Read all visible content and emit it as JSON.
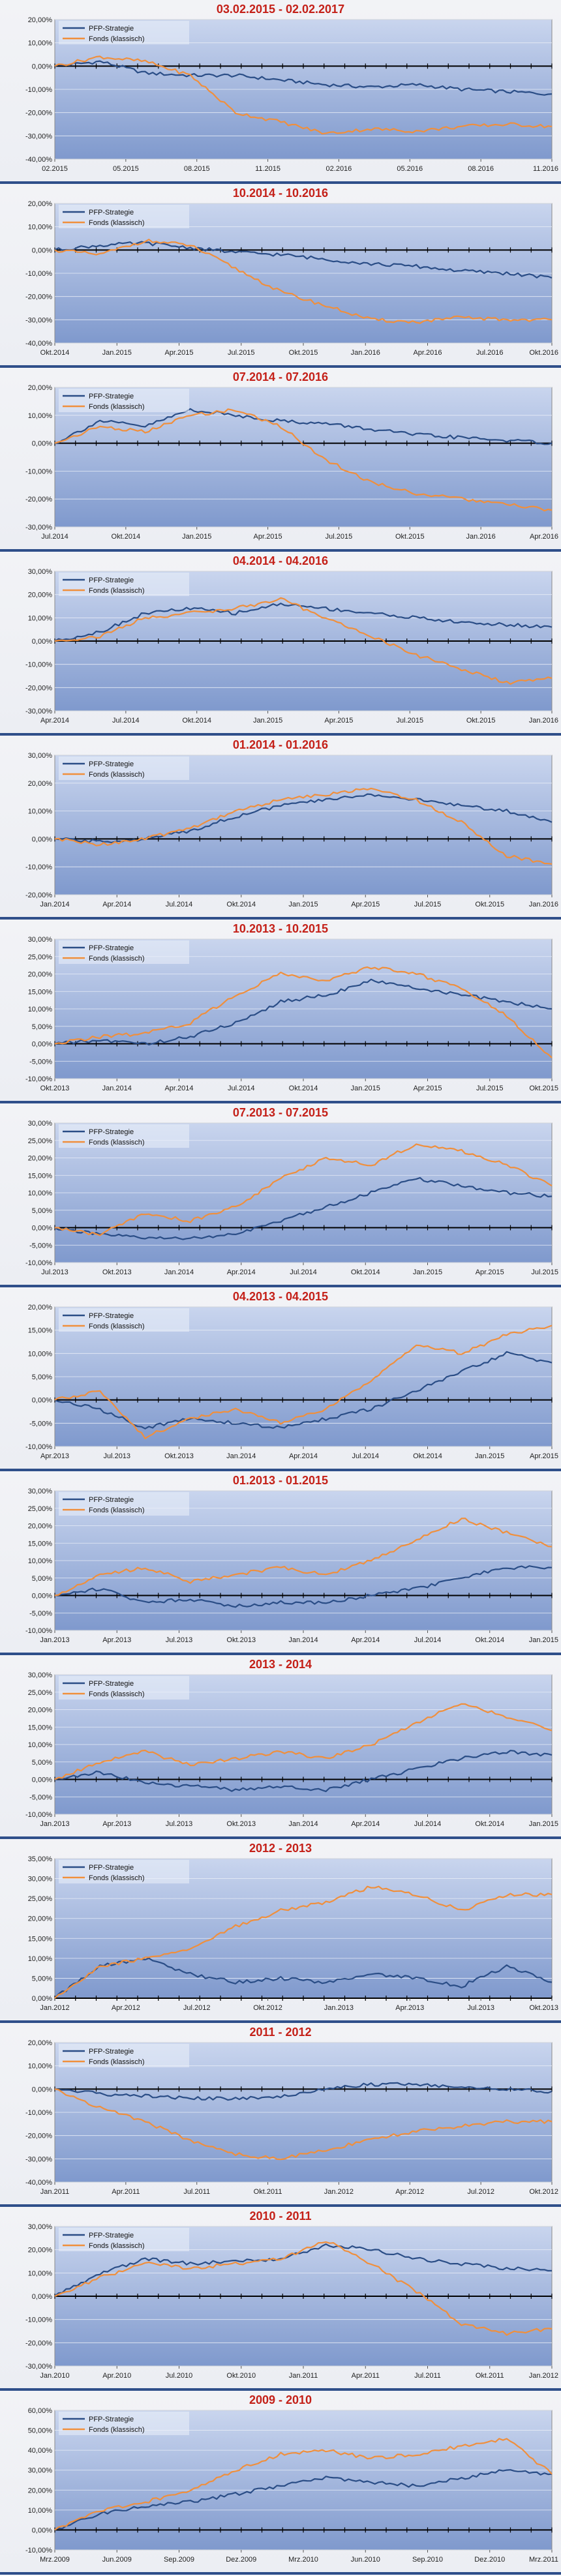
{
  "legend_labels": [
    "PFP-Strategie",
    "Fonds (klassisch)"
  ],
  "colors": {
    "pfp": "#2a4d86",
    "fonds": "#f08f3c",
    "title": "#c42018"
  },
  "chart_data": [
    {
      "type": "line",
      "title": "03.02.2015 - 02.02.2017",
      "x_ticks": [
        "02.2015",
        "05.2015",
        "08.2015",
        "11.2015",
        "02.2016",
        "05.2016",
        "08.2016",
        "11.2016"
      ],
      "y_ticks": [
        "20,00%",
        "10,00%",
        "0,00%",
        "-10,00%",
        "-20,00%",
        "-30,00%",
        "-40,00%"
      ],
      "ylim": [
        -40,
        20
      ],
      "series": [
        {
          "name": "PFP-Strategie",
          "values": [
            0,
            2,
            -3,
            -4,
            -4,
            -6,
            -8,
            -9,
            -8,
            -10,
            -11,
            -12
          ]
        },
        {
          "name": "Fonds (klassisch)",
          "values": [
            0,
            4,
            2,
            -4,
            -20,
            -24,
            -29,
            -27,
            -28,
            -26,
            -25,
            -26
          ]
        }
      ]
    },
    {
      "type": "line",
      "title": "10.2014 - 10.2016",
      "x_ticks": [
        "Okt.2014",
        "Jan.2015",
        "Apr.2015",
        "Jul.2015",
        "Okt.2015",
        "Jan.2016",
        "Apr.2016",
        "Jul.2016",
        "Okt.2016"
      ],
      "y_ticks": [
        "20,00%",
        "10,00%",
        "0,00%",
        "-10,00%",
        "-20,00%",
        "-30,00%",
        "-40,00%"
      ],
      "ylim": [
        -40,
        20
      ],
      "series": [
        {
          "name": "PFP-Strategie",
          "values": [
            0,
            2,
            3,
            1,
            -1,
            -2,
            -4,
            -6,
            -7,
            -9,
            -10,
            -12
          ]
        },
        {
          "name": "Fonds (klassisch)",
          "values": [
            0,
            -2,
            4,
            2,
            -8,
            -18,
            -24,
            -30,
            -31,
            -29,
            -30,
            -30
          ]
        }
      ]
    },
    {
      "type": "line",
      "title": "07.2014 - 07.2016",
      "x_ticks": [
        "Jul.2014",
        "Okt.2014",
        "Jan.2015",
        "Apr.2015",
        "Jul.2015",
        "Okt.2015",
        "Jan.2016",
        "Apr.2016"
      ],
      "y_ticks": [
        "20,00%",
        "10,00%",
        "0,00%",
        "-10,00%",
        "-20,00%",
        "-30,00%"
      ],
      "ylim": [
        -30,
        20
      ],
      "series": [
        {
          "name": "PFP-Strategie",
          "values": [
            0,
            8,
            6,
            12,
            10,
            8,
            7,
            5,
            3,
            2,
            1,
            0
          ]
        },
        {
          "name": "Fonds (klassisch)",
          "values": [
            0,
            6,
            4,
            10,
            12,
            6,
            -6,
            -14,
            -18,
            -20,
            -22,
            -24
          ]
        }
      ]
    },
    {
      "type": "line",
      "title": "04.2014 - 04.2016",
      "x_ticks": [
        "Apr.2014",
        "Jul.2014",
        "Okt.2014",
        "Jan.2015",
        "Apr.2015",
        "Jul.2015",
        "Okt.2015",
        "Jan.2016"
      ],
      "y_ticks": [
        "30,00%",
        "20,00%",
        "10,00%",
        "0,00%",
        "-10,00%",
        "-20,00%",
        "-30,00%"
      ],
      "ylim": [
        -30,
        30
      ],
      "series": [
        {
          "name": "PFP-Strategie",
          "values": [
            0,
            4,
            12,
            14,
            12,
            16,
            14,
            12,
            10,
            8,
            7,
            6
          ]
        },
        {
          "name": "Fonds (klassisch)",
          "values": [
            0,
            2,
            10,
            12,
            14,
            18,
            10,
            2,
            -6,
            -12,
            -18,
            -16
          ]
        }
      ]
    },
    {
      "type": "line",
      "title": "01.2014 - 01.2016",
      "x_ticks": [
        "Jan.2014",
        "Apr.2014",
        "Jul.2014",
        "Okt.2014",
        "Jan.2015",
        "Apr.2015",
        "Jul.2015",
        "Okt.2015",
        "Jan.2016"
      ],
      "y_ticks": [
        "30,00%",
        "20,00%",
        "10,00%",
        "0,00%",
        "-10,00%",
        "-20,00%"
      ],
      "ylim": [
        -20,
        30
      ],
      "series": [
        {
          "name": "PFP-Strategie",
          "values": [
            0,
            -1,
            0,
            3,
            8,
            12,
            14,
            16,
            14,
            12,
            10,
            6
          ]
        },
        {
          "name": "Fonds (klassisch)",
          "values": [
            0,
            -2,
            0,
            4,
            10,
            14,
            16,
            18,
            14,
            6,
            -6,
            -9
          ]
        }
      ]
    },
    {
      "type": "line",
      "title": "10.2013 - 10.2015",
      "x_ticks": [
        "Okt.2013",
        "Jan.2014",
        "Apr.2014",
        "Jul.2014",
        "Okt.2014",
        "Jan.2015",
        "Apr.2015",
        "Jul.2015",
        "Okt.2015"
      ],
      "y_ticks": [
        "30,00%",
        "25,00%",
        "20,00%",
        "15,00%",
        "10,00%",
        "5,00%",
        "0,00%",
        "-5,00%",
        "-10,00%"
      ],
      "ylim": [
        -10,
        30
      ],
      "series": [
        {
          "name": "PFP-Strategie",
          "values": [
            0,
            1,
            0,
            2,
            6,
            12,
            14,
            18,
            16,
            14,
            12,
            10
          ]
        },
        {
          "name": "Fonds (klassisch)",
          "values": [
            0,
            2,
            3,
            6,
            14,
            20,
            18,
            22,
            20,
            16,
            8,
            -4
          ]
        }
      ]
    },
    {
      "type": "line",
      "title": "07.2013 - 07.2015",
      "x_ticks": [
        "Jul.2013",
        "Okt.2013",
        "Jan.2014",
        "Apr.2014",
        "Jul.2014",
        "Okt.2014",
        "Jan.2015",
        "Apr.2015",
        "Jul.2015"
      ],
      "y_ticks": [
        "30,00%",
        "25,00%",
        "20,00%",
        "15,00%",
        "10,00%",
        "5,00%",
        "0,00%",
        "-5,00%",
        "-10,00%"
      ],
      "ylim": [
        -10,
        30
      ],
      "series": [
        {
          "name": "PFP-Strategie",
          "values": [
            0,
            -2,
            -3,
            -3,
            -2,
            2,
            6,
            10,
            14,
            12,
            10,
            9
          ]
        },
        {
          "name": "Fonds (klassisch)",
          "values": [
            0,
            -2,
            4,
            2,
            6,
            14,
            20,
            18,
            24,
            22,
            18,
            12
          ]
        }
      ]
    },
    {
      "type": "line",
      "title": "04.2013 - 04.2015",
      "x_ticks": [
        "Apr.2013",
        "Jul.2013",
        "Okt.2013",
        "Jan.2014",
        "Apr.2014",
        "Jul.2014",
        "Okt.2014",
        "Jan.2015",
        "Apr.2015"
      ],
      "y_ticks": [
        "20,00%",
        "15,00%",
        "10,00%",
        "5,00%",
        "0,00%",
        "-5,00%",
        "-10,00%"
      ],
      "ylim": [
        -10,
        20
      ],
      "series": [
        {
          "name": "PFP-Strategie",
          "values": [
            0,
            -2,
            -6,
            -4,
            -5,
            -6,
            -4,
            -2,
            2,
            6,
            10,
            8
          ]
        },
        {
          "name": "Fonds (klassisch)",
          "values": [
            0,
            2,
            -8,
            -4,
            -2,
            -5,
            -2,
            4,
            12,
            10,
            14,
            16
          ]
        }
      ]
    },
    {
      "type": "line",
      "title": "01.2013 - 01.2015",
      "x_ticks": [
        "Jan.2013",
        "Apr.2013",
        "Jul.2013",
        "Okt.2013",
        "Jan.2014",
        "Apr.2014",
        "Jul.2014",
        "Okt.2014",
        "Jan.2015"
      ],
      "y_ticks": [
        "30,00%",
        "25,00%",
        "20,00%",
        "15,00%",
        "10,00%",
        "5,00%",
        "0,00%",
        "-5,00%",
        "-10,00%"
      ],
      "ylim": [
        -10,
        30
      ],
      "series": [
        {
          "name": "PFP-Strategie",
          "values": [
            0,
            2,
            -2,
            -1,
            -3,
            -2,
            -2,
            0,
            2,
            5,
            8,
            8
          ]
        },
        {
          "name": "Fonds (klassisch)",
          "values": [
            0,
            6,
            8,
            4,
            6,
            8,
            6,
            10,
            16,
            22,
            18,
            14
          ]
        }
      ]
    },
    {
      "type": "line",
      "title": "2013 - 2014",
      "x_ticks": [
        "Jan.2013",
        "Apr.2013",
        "Jul.2013",
        "Okt.2013",
        "Jan.2014",
        "Apr.2014",
        "Jul.2014",
        "Okt.2014",
        "Jan.2015"
      ],
      "y_ticks": [
        "30,00%",
        "25,00%",
        "20,00%",
        "15,00%",
        "10,00%",
        "5,00%",
        "0,00%",
        "-5,00%",
        "-10,00%"
      ],
      "ylim": [
        -10,
        30
      ],
      "series": [
        {
          "name": "PFP-Strategie",
          "values": [
            0,
            2,
            -1,
            -2,
            -3,
            -2,
            -3,
            0,
            3,
            6,
            8,
            7
          ]
        },
        {
          "name": "Fonds (klassisch)",
          "values": [
            0,
            5,
            8,
            4,
            6,
            8,
            6,
            10,
            16,
            22,
            18,
            14
          ]
        }
      ]
    },
    {
      "type": "line",
      "title": "2012 - 2013",
      "x_ticks": [
        "Jan.2012",
        "Apr.2012",
        "Jul.2012",
        "Okt.2012",
        "Jan.2013",
        "Apr.2013",
        "Jul.2013",
        "Okt.2013"
      ],
      "y_ticks": [
        "35,00%",
        "30,00%",
        "25,00%",
        "20,00%",
        "15,00%",
        "10,00%",
        "5,00%",
        "0,00%"
      ],
      "ylim": [
        0,
        35
      ],
      "series": [
        {
          "name": "PFP-Strategie",
          "values": [
            0,
            8,
            10,
            6,
            4,
            5,
            4,
            6,
            5,
            3,
            8,
            4
          ]
        },
        {
          "name": "Fonds (klassisch)",
          "values": [
            0,
            8,
            10,
            12,
            18,
            22,
            24,
            28,
            26,
            22,
            26,
            26
          ]
        }
      ]
    },
    {
      "type": "line",
      "title": "2011 - 2012",
      "x_ticks": [
        "Jan.2011",
        "Apr.2011",
        "Jul.2011",
        "Okt.2011",
        "Jan.2012",
        "Apr.2012",
        "Jul.2012",
        "Okt.2012"
      ],
      "y_ticks": [
        "20,00%",
        "10,00%",
        "0,00%",
        "-10,00%",
        "-20,00%",
        "-30,00%",
        "-40,00%"
      ],
      "ylim": [
        -40,
        20
      ],
      "series": [
        {
          "name": "PFP-Strategie",
          "values": [
            0,
            -2,
            -3,
            -4,
            -4,
            -3,
            0,
            2,
            2,
            1,
            0,
            -1
          ]
        },
        {
          "name": "Fonds (klassisch)",
          "values": [
            0,
            -8,
            -14,
            -22,
            -28,
            -30,
            -26,
            -22,
            -18,
            -16,
            -14,
            -14
          ]
        }
      ]
    },
    {
      "type": "line",
      "title": "2010 - 2011",
      "x_ticks": [
        "Jan.2010",
        "Apr.2010",
        "Jul.2010",
        "Okt.2010",
        "Jan.2011",
        "Apr.2011",
        "Jul.2011",
        "Okt.2011",
        "Jan.2012"
      ],
      "y_ticks": [
        "30,00%",
        "20,00%",
        "10,00%",
        "0,00%",
        "-10,00%",
        "-20,00%",
        "-30,00%"
      ],
      "ylim": [
        -30,
        30
      ],
      "series": [
        {
          "name": "PFP-Strategie",
          "values": [
            0,
            10,
            16,
            14,
            15,
            16,
            22,
            20,
            16,
            14,
            12,
            11
          ]
        },
        {
          "name": "Fonds (klassisch)",
          "values": [
            0,
            8,
            14,
            12,
            14,
            16,
            24,
            14,
            2,
            -12,
            -16,
            -14
          ]
        }
      ]
    },
    {
      "type": "line",
      "title": "2009 - 2010",
      "x_ticks": [
        "Mrz.2009",
        "Jun.2009",
        "Sep.2009",
        "Dez.2009",
        "Mrz.2010",
        "Jun.2010",
        "Sep.2010",
        "Dez.2010",
        "Mrz.2011"
      ],
      "y_ticks": [
        "60,00%",
        "50,00%",
        "40,00%",
        "30,00%",
        "20,00%",
        "10,00%",
        "0,00%",
        "-10,00%"
      ],
      "ylim": [
        -10,
        60
      ],
      "series": [
        {
          "name": "PFP-Strategie",
          "values": [
            0,
            8,
            12,
            14,
            18,
            22,
            26,
            24,
            22,
            26,
            30,
            28
          ]
        },
        {
          "name": "Fonds (klassisch)",
          "values": [
            0,
            10,
            14,
            20,
            30,
            38,
            40,
            36,
            38,
            42,
            46,
            28
          ]
        }
      ]
    }
  ]
}
